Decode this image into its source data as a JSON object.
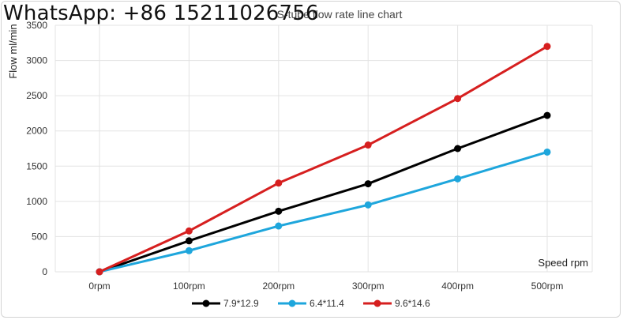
{
  "watermark": "WhatsApp: +86 15211026756",
  "chart_data": {
    "type": "line",
    "title": "S-tube flow rate line chart",
    "xlabel": "Speed rpm",
    "ylabel": "Flow ml/min",
    "categories": [
      "0rpm",
      "100rpm",
      "200rpm",
      "300rpm",
      "400rpm",
      "500rpm"
    ],
    "ylim": [
      0,
      3500
    ],
    "yticks": [
      0,
      500,
      1000,
      1500,
      2000,
      2500,
      3000,
      3500
    ],
    "grid": true,
    "legend_position": "bottom",
    "series": [
      {
        "name": "7.9*12.9",
        "color": "#000000",
        "values": [
          0,
          440,
          860,
          1250,
          1750,
          2220
        ]
      },
      {
        "name": "6.4*11.4",
        "color": "#1ea6dc",
        "values": [
          0,
          300,
          650,
          950,
          1320,
          1700
        ]
      },
      {
        "name": "9.6*14.6",
        "color": "#d61f1f",
        "values": [
          0,
          580,
          1260,
          1800,
          2460,
          3200
        ]
      }
    ]
  }
}
